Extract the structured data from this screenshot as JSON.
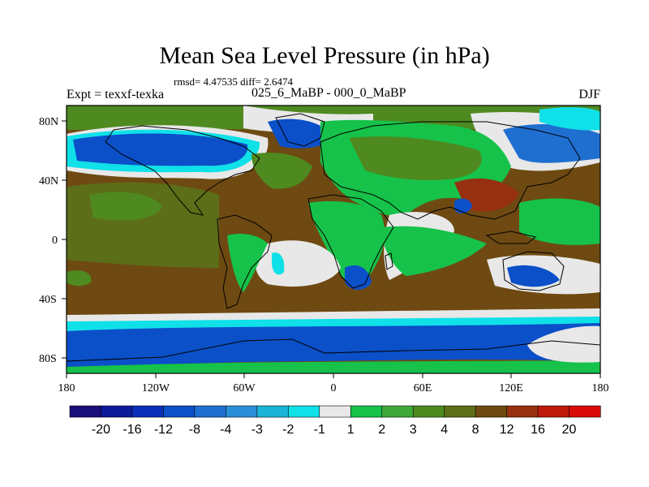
{
  "header": {
    "title": "Mean Sea Level Pressure (in hPa)",
    "stats": "rmsd= 4.47535 diff= 2.6474",
    "experiment": "Expt = texxf-texka",
    "period": "025_6_MaBP - 000_0_MaBP",
    "season": "DJF"
  },
  "axes": {
    "lat_labels": [
      "80N",
      "40N",
      "0",
      "40S",
      "80S"
    ],
    "lat_values": [
      80,
      40,
      0,
      -40,
      -80
    ],
    "lon_labels": [
      "180",
      "120W",
      "60W",
      "0",
      "60E",
      "120E",
      "180"
    ],
    "lon_values": [
      -180,
      -120,
      -60,
      0,
      60,
      120,
      180
    ]
  },
  "colorbar": {
    "tick_labels": [
      "-20",
      "-16",
      "-12",
      "-8",
      "-4",
      "-3",
      "-2",
      "-1",
      "1",
      "2",
      "3",
      "4",
      "8",
      "12",
      "16",
      "20"
    ],
    "colors": [
      "#1a0f78",
      "#0d1a9a",
      "#0a2eb8",
      "#0b4fc9",
      "#1f6fd0",
      "#2a8fd6",
      "#19b4d8",
      "#10e0e8",
      "#e8e8e8",
      "#16c24a",
      "#3fa83a",
      "#4e8a1f",
      "#5c6e18",
      "#6e4a12",
      "#963010",
      "#bd1a0c",
      "#d80b08"
    ]
  },
  "map_colors": {
    "ocean_base": "#6e4a12",
    "land_green": "#16c24a",
    "land_olive": "#4e8a1f",
    "neutral": "#e8e8e8",
    "strong_neg": "#0b4fc9",
    "mid_neg": "#1f6fd0",
    "weak_neg": "#10e0e8",
    "strong_pos": "#963010",
    "warm": "#5c6e18"
  }
}
